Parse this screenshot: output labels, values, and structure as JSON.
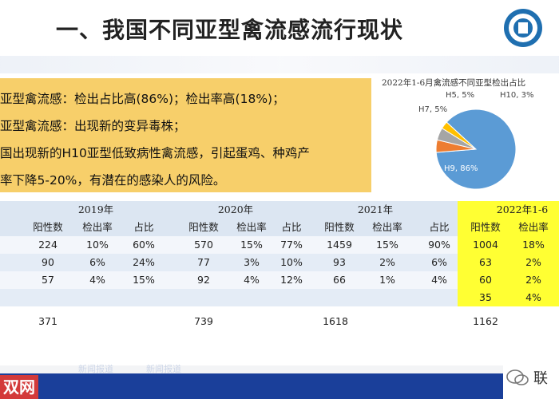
{
  "slide": {
    "title": "一、我国不同亚型禽流感流行现状"
  },
  "note": {
    "lines": [
      "亚型禽流感：检出占比高(86%)；检出率高(18%)；",
      "亚型禽流感：出现新的变异毒株；",
      "国出现新的H10亚型低致病性禽流感，引起蛋鸡、种鸡产",
      "率下降5-20%，有潜在的感染人的风险。"
    ]
  },
  "chart_data": {
    "type": "pie",
    "title": "2022年1-6月禽流感不同亚型检出占比",
    "slices": [
      {
        "label": "H9, 86%",
        "value": 86,
        "color": "#5b9bd5"
      },
      {
        "label": "H7, 5%",
        "value": 5,
        "color": "#ed7d31"
      },
      {
        "label": "H5, 5%",
        "value": 5,
        "color": "#a5a5a5"
      },
      {
        "label": "H10, 3%",
        "value": 3,
        "color": "#ffc000"
      }
    ]
  },
  "table": {
    "years": [
      "2019年",
      "2020年",
      "2021年",
      "2022年1-6"
    ],
    "subheaders": [
      "阳性数",
      "检出率",
      "占比"
    ],
    "rows": [
      [
        "224",
        "10%",
        "60%",
        "570",
        "15%",
        "77%",
        "1459",
        "15%",
        "90%",
        "1004",
        "18%"
      ],
      [
        "90",
        "6%",
        "24%",
        "77",
        "3%",
        "10%",
        "93",
        "2%",
        "6%",
        "63",
        "2%"
      ],
      [
        "57",
        "4%",
        "15%",
        "92",
        "4%",
        "12%",
        "66",
        "1%",
        "4%",
        "60",
        "2%"
      ],
      [
        "",
        "",
        "",
        "",
        "",
        "",
        "",
        "",
        "",
        "35",
        "4%"
      ]
    ],
    "totals": [
      "371",
      "739",
      "1618",
      "1162"
    ]
  },
  "footer": {
    "left_text": "双网",
    "tabs": [
      "新闻报道",
      "新闻报道"
    ],
    "right_text": "联"
  },
  "colors": {
    "note_bg": "#f7cf6a",
    "highlight_col": "#ffff33",
    "row_band": "#dce6f2"
  }
}
